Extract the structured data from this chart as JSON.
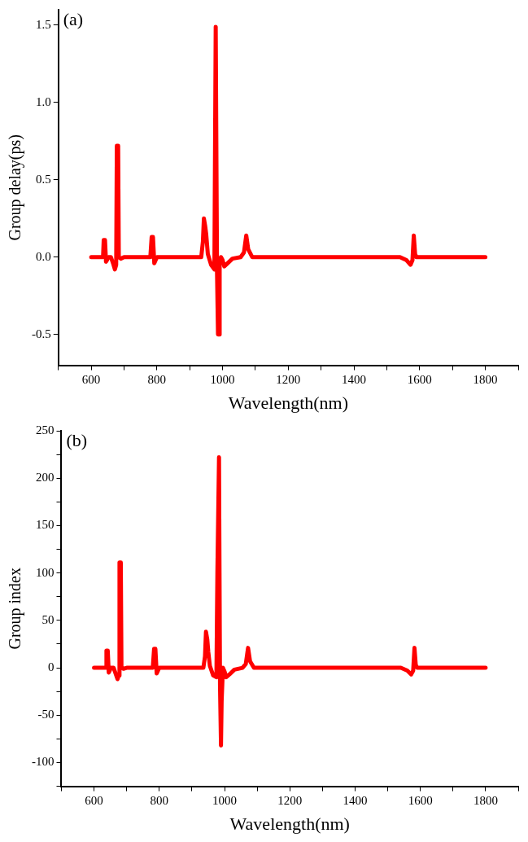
{
  "chart_data": [
    {
      "type": "line",
      "xlabel": "Wavelength(nm)",
      "ylabel": "Group delay(ps)",
      "annotations": [
        "(a)"
      ],
      "grid": false,
      "legend": false,
      "marker": "none",
      "line_style": "solid",
      "xlim": [
        500,
        1900
      ],
      "xticks": [
        {
          "value": 500,
          "label": null
        },
        600,
        {
          "value": 700,
          "label": null
        },
        800,
        {
          "value": 900,
          "label": null
        },
        1000,
        {
          "value": 1100,
          "label": null
        },
        1200,
        {
          "value": 1300,
          "label": null
        },
        1400,
        {
          "value": 1500,
          "label": null
        },
        1600,
        {
          "value": 1700,
          "label": null
        },
        1800,
        {
          "value": 1900,
          "label": null
        }
      ],
      "ylim": [
        -0.7,
        1.6
      ],
      "yticks": [
        -0.5,
        {
          "value": 0,
          "label": "0.0"
        },
        0.5,
        {
          "value": 1,
          "label": "1.0"
        },
        1.5
      ],
      "series": [
        {
          "color": "#ff0000",
          "x": [
            600,
            630,
            636,
            638,
            642,
            645,
            648,
            652,
            660,
            668,
            672,
            676,
            678,
            682,
            684,
            690,
            700,
            780,
            784,
            788,
            792,
            796,
            800,
            935,
            940,
            943,
            947,
            950,
            955,
            965,
            975,
            979,
            983,
            986,
            989,
            991,
            995,
            1000,
            1005,
            1015,
            1030,
            1055,
            1065,
            1072,
            1078,
            1090,
            1540,
            1560,
            1572,
            1578,
            1582,
            1586,
            1590,
            1800
          ],
          "values": [
            0,
            0,
            0,
            0.11,
            0.11,
            -0.03,
            -0.02,
            0,
            0,
            -0.05,
            -0.08,
            -0.05,
            0.72,
            0.72,
            0,
            -0.01,
            0,
            0,
            0.13,
            0.13,
            -0.04,
            -0.02,
            0,
            0,
            0.1,
            0.25,
            0.2,
            0.15,
            0.02,
            -0.05,
            -0.08,
            1.49,
            -0.1,
            -0.5,
            -0.5,
            -0.05,
            0,
            -0.02,
            -0.06,
            -0.04,
            -0.01,
            0,
            0.03,
            0.14,
            0.05,
            0,
            0,
            -0.02,
            -0.05,
            -0.02,
            0.14,
            0.02,
            0,
            0
          ]
        }
      ]
    },
    {
      "type": "line",
      "xlabel": "Wavelength(nm)",
      "ylabel": "Group index",
      "annotations": [
        "(b)"
      ],
      "grid": false,
      "legend": false,
      "marker": "none",
      "line_style": "solid",
      "xlim": [
        500,
        1900
      ],
      "xticks": [
        {
          "value": 500,
          "label": null
        },
        600,
        {
          "value": 700,
          "label": null
        },
        800,
        {
          "value": 900,
          "label": null
        },
        1000,
        {
          "value": 1100,
          "label": null
        },
        1200,
        {
          "value": 1300,
          "label": null
        },
        1400,
        {
          "value": 1500,
          "label": null
        },
        1600,
        {
          "value": 1700,
          "label": null
        },
        1800,
        {
          "value": 1900,
          "label": null
        }
      ],
      "ylim": [
        -125,
        250
      ],
      "yticks": [
        {
          "value": -125,
          "label": null
        },
        -100,
        {
          "value": -75,
          "label": null
        },
        -50,
        {
          "value": -25,
          "label": null
        },
        0,
        {
          "value": 25,
          "label": null
        },
        50,
        {
          "value": 75,
          "label": null
        },
        100,
        {
          "value": 125,
          "label": null
        },
        150,
        {
          "value": 175,
          "label": null
        },
        200,
        {
          "value": 225,
          "label": null
        },
        250
      ],
      "series": [
        {
          "color": "#ff0000",
          "x": [
            600,
            630,
            636,
            638,
            642,
            645,
            648,
            652,
            660,
            668,
            672,
            676,
            678,
            682,
            684,
            690,
            700,
            780,
            784,
            788,
            792,
            796,
            800,
            935,
            940,
            943,
            947,
            950,
            955,
            965,
            975,
            978,
            983,
            986,
            989,
            991,
            995,
            1000,
            1005,
            1015,
            1030,
            1055,
            1065,
            1072,
            1078,
            1090,
            1540,
            1560,
            1572,
            1578,
            1582,
            1586,
            1590,
            1800
          ],
          "values": [
            0,
            0,
            0,
            18,
            18,
            -5,
            -3,
            0,
            0,
            -8,
            -12,
            -8,
            111,
            111,
            0,
            -1,
            0,
            0,
            20,
            20,
            -6,
            -3,
            0,
            0,
            12,
            38,
            30,
            17,
            2,
            -8,
            -10,
            100,
            222,
            -18,
            -82,
            -35,
            0,
            -4,
            -10,
            -7,
            -2,
            0,
            4,
            21,
            7,
            0,
            0,
            -3,
            -7,
            -3,
            21,
            3,
            0,
            0
          ]
        }
      ]
    }
  ]
}
